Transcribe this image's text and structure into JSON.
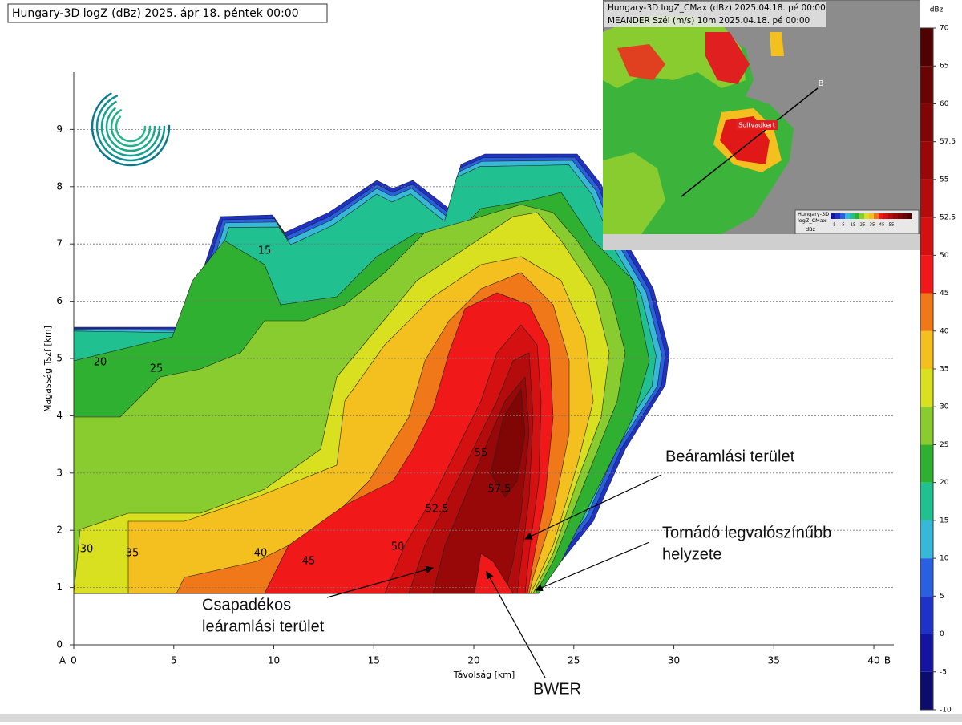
{
  "chart_data": {
    "type": "contour",
    "title": "Hungary-3D logZ (dBz) 2025. ápr 18. péntek 00:00",
    "x_label": "Távolság [km]",
    "y_label": "Magasság Tszf [km]",
    "endpoints": [
      "A",
      "B"
    ],
    "xlim": [
      0,
      41
    ],
    "xticks": [
      0,
      5,
      10,
      15,
      20,
      25,
      30,
      35,
      40
    ],
    "ylim": [
      0,
      10
    ],
    "yticks": [
      0,
      1,
      2,
      3,
      4,
      5,
      6,
      7,
      8,
      9
    ],
    "grid": true,
    "contour_labels": [
      20,
      25,
      15,
      30,
      35,
      40,
      45,
      50,
      52.5,
      55,
      57.5
    ],
    "colorbar": {
      "label": "dBz",
      "ticks": [
        -10,
        -5,
        0,
        5,
        10,
        15,
        20,
        25,
        30,
        35,
        40,
        45,
        50,
        52.5,
        55,
        57.5,
        60,
        65,
        70
      ],
      "colors": [
        "#0c0c6e",
        "#1414a0",
        "#1e32c8",
        "#2860e0",
        "#38b8d8",
        "#20c090",
        "#30b030",
        "#88cc30",
        "#d8e020",
        "#f4c020",
        "#f07818",
        "#f01818",
        "#d41010",
        "#b40c0c",
        "#980808",
        "#800606",
        "#680404",
        "#500202"
      ]
    },
    "annotations": [
      {
        "lines": [
          "Beáramlási terület"
        ]
      },
      {
        "lines": [
          "Tornádó legvalószínűbb",
          "helyzete"
        ]
      },
      {
        "lines": [
          "Csapadékos",
          "leáramlási terület"
        ]
      },
      {
        "lines": [
          "BWER"
        ]
      }
    ],
    "inset": {
      "title": "Hungary-3D logZ_CMax (dBz) 2025.04.18. pé 00:00",
      "subtitle": "MEANDER Szél (m/s) 10m 2025.04.18. pé 00:00",
      "place_label": "Soltvadkert",
      "point_label": "B",
      "legend_lines": [
        "Hungary-3D",
        "logZ_CMax"
      ],
      "legend_unit": "dBz",
      "legend_ticks": [
        -5,
        5,
        15,
        25,
        35,
        45,
        55
      ]
    }
  }
}
